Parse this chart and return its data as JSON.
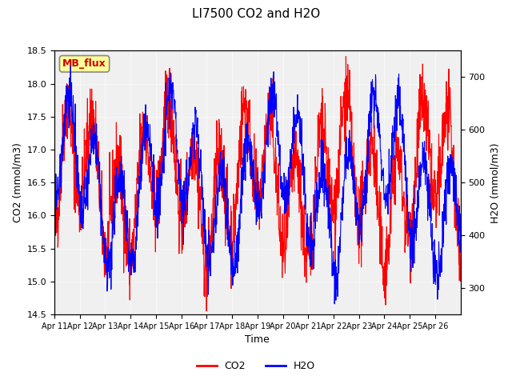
{
  "title": "LI7500 CO2 and H2O",
  "xlabel": "Time",
  "ylabel_left": "CO2 (mmol/m3)",
  "ylabel_right": "H2O (mmol/m3)",
  "ylim_left": [
    14.5,
    18.5
  ],
  "ylim_right": [
    250,
    750
  ],
  "co2_color": "#ff0000",
  "h2o_color": "#0000ff",
  "bg_color": "#e8e8e8",
  "plot_bg_color": "#f0f0f0",
  "label_box_text": "MB_flux",
  "label_box_facecolor": "#ffff99",
  "label_box_edgecolor": "#888888",
  "label_box_textcolor": "#cc0000",
  "xtick_labels": [
    "Apr 11",
    "Apr 12",
    "Apr 13",
    "Apr 14",
    "Apr 15",
    "Apr 16",
    "Apr 17",
    "Apr 18",
    "Apr 19",
    "Apr 20",
    "Apr 21",
    "Apr 22",
    "Apr 23",
    "Apr 24",
    "Apr 25",
    "Apr 26"
  ],
  "n_days": 16,
  "seed": 42
}
